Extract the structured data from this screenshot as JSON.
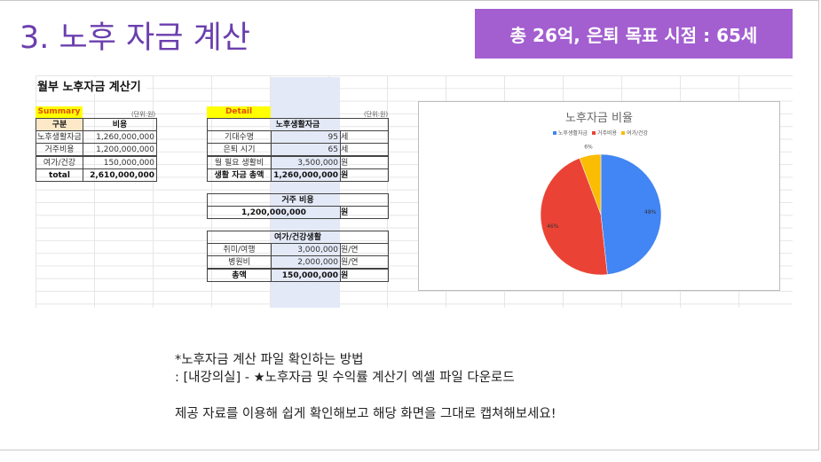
{
  "slide": {
    "title": "3. 노후 자금 계산",
    "badge": "총 26억, 은퇴 목표 시점  : 65세"
  },
  "sheet": {
    "title": "월부 노후자금 계산기",
    "summary": {
      "label": "Summary",
      "unit": "(단위:원)",
      "headers": [
        "구분",
        "비용"
      ],
      "rows": [
        [
          "노후생활자금",
          "1,260,000,000"
        ],
        [
          "거주비용",
          "1,200,000,000"
        ],
        [
          "여가/건강",
          "150,000,000"
        ],
        [
          "total",
          "2,610,000,000"
        ]
      ]
    },
    "detail": {
      "label": "Detail",
      "unit": "(단위:원)",
      "living": {
        "header": "노후생활자금",
        "rows": [
          [
            "기대수명",
            "95",
            "세"
          ],
          [
            "은퇴 시기",
            "65",
            "세"
          ],
          [
            "월 필요 생활비",
            "3,500,000",
            "원"
          ],
          [
            "생활 자금 총액",
            "1,260,000,000",
            "원"
          ]
        ]
      },
      "housing": {
        "header": "거주 비용",
        "value": "1,200,000,000",
        "unit": "원"
      },
      "leisure": {
        "header": "여가/건강생활",
        "rows": [
          [
            "취미/여행",
            "3,000,000",
            "원/연"
          ],
          [
            "병원비",
            "2,000,000",
            "원/연"
          ],
          [
            "총액",
            "150,000,000",
            "원"
          ]
        ]
      }
    }
  },
  "chart_data": {
    "type": "pie",
    "title": "노후자금 비율",
    "categories": [
      "노후생활자금",
      "거주비용",
      "여가/건강"
    ],
    "values": [
      1260000000,
      1200000000,
      150000000
    ],
    "labels": [
      "48%",
      "46%",
      "6%"
    ],
    "colors": [
      "#4285f4",
      "#ea4335",
      "#fbbc04"
    ],
    "legend": "top"
  },
  "notes": {
    "line1": "*노후자금 계산 파일 확인하는 방법",
    "line2": ": [내강의실] - ★노후자금 및 수익률 계산기 엑셀 파일 다운로드",
    "line3": "제공 자료를 이용해 쉽게 확인해보고 해당 화면을 그대로 캡쳐해보세요!"
  }
}
